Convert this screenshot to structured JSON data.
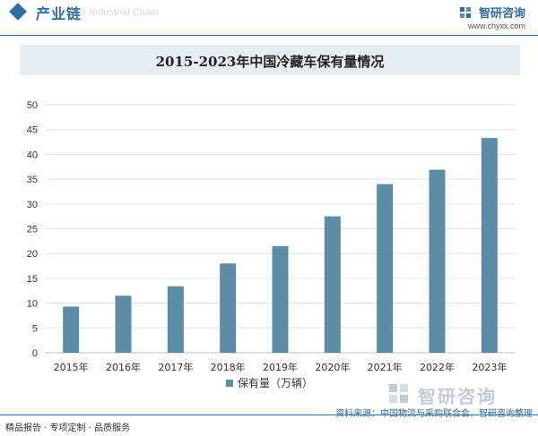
{
  "header": {
    "section_title": "产业链",
    "section_subtitle": "Industrial Chain",
    "brand_name": "智研咨询",
    "brand_url": "www.chyxx.com"
  },
  "watermark": {
    "brand_name": "智研咨询"
  },
  "footer": {
    "left_text": "精品报告 · 专项定制 · 品质服务",
    "source_text": "资料来源：中国物流与采购联合会，智研咨询整理"
  },
  "colors": {
    "accent": "#2f6ea5",
    "bar": "#5b8ea6",
    "title_bg": "#e6edf3"
  },
  "chart_data": {
    "type": "bar",
    "title": "2015-2023年中国冷藏车保有量情况",
    "categories": [
      "2015年",
      "2016年",
      "2017年",
      "2018年",
      "2019年",
      "2020年",
      "2021年",
      "2022年",
      "2023年"
    ],
    "series": [
      {
        "name": "保有量（万辆）",
        "values": [
          9.3,
          11.5,
          13.4,
          18.0,
          21.5,
          27.5,
          34.0,
          36.9,
          43.3
        ]
      }
    ],
    "ylim": [
      0,
      50
    ],
    "yticks": [
      0,
      5,
      10,
      15,
      20,
      25,
      30,
      35,
      40,
      45,
      50
    ],
    "xlabel": "",
    "ylabel": "",
    "legend_position": "bottom-center"
  }
}
